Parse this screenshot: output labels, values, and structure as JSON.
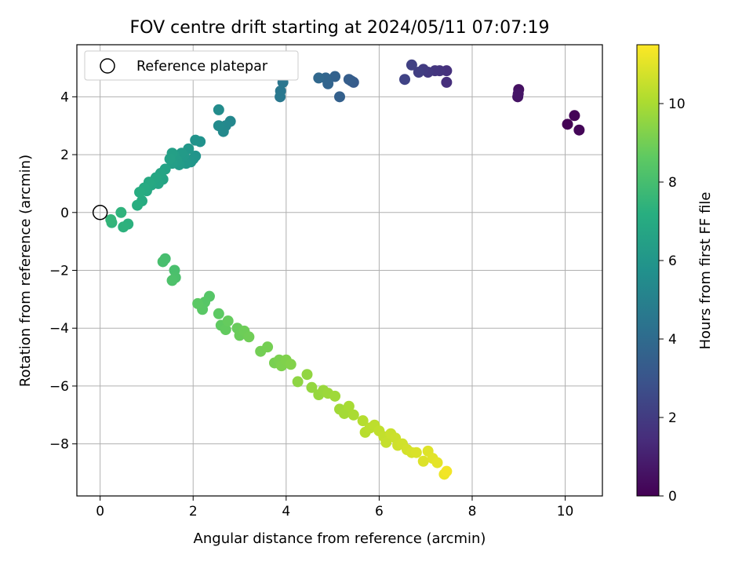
{
  "chart_data": {
    "type": "scatter",
    "title": "FOV centre drift starting at 2024/05/11 07:07:19",
    "xlabel": "Angular distance from reference (arcmin)",
    "ylabel": "Rotation from reference (arcmin)",
    "xlim": [
      -0.5,
      10.8
    ],
    "ylim": [
      -9.8,
      5.8
    ],
    "xticks": [
      0,
      2,
      4,
      6,
      8,
      10
    ],
    "yticks": [
      -8,
      -6,
      -4,
      -2,
      0,
      2,
      4
    ],
    "xtick_labels": [
      "0",
      "2",
      "4",
      "6",
      "8",
      "10"
    ],
    "ytick_labels": [
      "−8",
      "−6",
      "−4",
      "−2",
      "0",
      "2",
      "4"
    ],
    "grid": true,
    "legend": {
      "placement": "top-left",
      "entries": [
        {
          "label": "Reference platepar",
          "marker": "open-circle"
        }
      ]
    },
    "reference_point": {
      "x": 0,
      "y": 0
    },
    "colorbar": {
      "label": "Hours from first FF file",
      "colormap": "viridis",
      "range": [
        0,
        11.5
      ],
      "ticks": [
        0,
        2,
        4,
        6,
        8,
        10
      ],
      "tick_labels": [
        "0",
        "2",
        "4",
        "6",
        "8",
        "10"
      ]
    },
    "series": [
      {
        "points": [
          [
            10.05,
            3.05,
            0.05
          ],
          [
            10.2,
            3.35,
            0.1
          ],
          [
            10.3,
            2.85,
            0.15
          ],
          [
            9.0,
            4.25,
            0.5
          ],
          [
            8.98,
            4.0,
            0.6
          ],
          [
            8.99,
            4.1,
            0.65
          ],
          [
            7.45,
            4.5,
            1.5
          ],
          [
            7.45,
            4.9,
            1.6
          ],
          [
            7.3,
            4.9,
            1.7
          ],
          [
            7.2,
            4.9,
            1.8
          ],
          [
            7.05,
            4.85,
            1.9
          ],
          [
            6.95,
            4.95,
            2.0
          ],
          [
            6.85,
            4.85,
            2.1
          ],
          [
            6.7,
            5.1,
            2.2
          ],
          [
            6.55,
            4.6,
            2.3
          ],
          [
            5.45,
            4.5,
            3.3
          ],
          [
            5.4,
            4.55,
            3.35
          ],
          [
            5.35,
            4.6,
            3.4
          ],
          [
            5.15,
            4.0,
            3.5
          ],
          [
            5.05,
            4.7,
            3.6
          ],
          [
            4.9,
            4.45,
            3.7
          ],
          [
            4.85,
            4.65,
            3.75
          ],
          [
            4.7,
            4.65,
            3.85
          ],
          [
            3.93,
            4.5,
            4.5
          ],
          [
            3.88,
            4.2,
            4.55
          ],
          [
            3.87,
            4.0,
            4.6
          ],
          [
            2.8,
            3.15,
            5.3
          ],
          [
            2.7,
            3.0,
            5.35
          ],
          [
            2.65,
            2.8,
            5.4
          ],
          [
            2.55,
            3.0,
            5.45
          ],
          [
            2.55,
            3.55,
            5.5
          ],
          [
            2.15,
            2.45,
            5.8
          ],
          [
            2.05,
            2.5,
            5.85
          ],
          [
            2.05,
            1.95,
            5.9
          ],
          [
            2.0,
            1.85,
            5.95
          ],
          [
            1.95,
            1.75,
            6.0
          ],
          [
            1.9,
            2.2,
            6.05
          ],
          [
            1.85,
            1.7,
            6.1
          ],
          [
            1.8,
            1.95,
            6.15
          ],
          [
            1.75,
            2.05,
            6.2
          ],
          [
            1.7,
            1.65,
            6.25
          ],
          [
            1.65,
            1.8,
            6.3
          ],
          [
            1.6,
            1.95,
            6.35
          ],
          [
            1.55,
            1.7,
            6.4
          ],
          [
            1.55,
            2.05,
            6.45
          ],
          [
            1.5,
            1.85,
            6.5
          ],
          [
            1.4,
            1.5,
            6.6
          ],
          [
            1.35,
            1.15,
            6.65
          ],
          [
            1.3,
            1.35,
            6.7
          ],
          [
            1.25,
            1.0,
            6.75
          ],
          [
            1.2,
            1.2,
            6.8
          ],
          [
            1.1,
            0.95,
            6.85
          ],
          [
            1.05,
            1.05,
            6.9
          ],
          [
            1.0,
            0.75,
            6.95
          ],
          [
            0.95,
            0.85,
            7.0
          ],
          [
            0.9,
            0.4,
            7.05
          ],
          [
            0.85,
            0.7,
            7.1
          ],
          [
            0.8,
            0.25,
            7.15
          ],
          [
            0.6,
            -0.4,
            7.3
          ],
          [
            0.5,
            -0.5,
            7.35
          ],
          [
            0.45,
            0.0,
            7.4
          ],
          [
            0.25,
            -0.35,
            7.45
          ],
          [
            0.23,
            -0.25,
            7.5
          ],
          [
            1.4,
            -1.6,
            8.0
          ],
          [
            1.35,
            -1.7,
            8.05
          ],
          [
            1.6,
            -2.0,
            8.1
          ],
          [
            1.62,
            -2.25,
            8.15
          ],
          [
            1.55,
            -2.35,
            8.2
          ],
          [
            2.35,
            -2.9,
            8.4
          ],
          [
            2.25,
            -3.1,
            8.45
          ],
          [
            2.2,
            -3.35,
            8.5
          ],
          [
            2.1,
            -3.15,
            8.55
          ],
          [
            2.55,
            -3.5,
            8.6
          ],
          [
            2.6,
            -3.9,
            8.65
          ],
          [
            2.7,
            -4.05,
            8.7
          ],
          [
            2.75,
            -3.75,
            8.75
          ],
          [
            2.95,
            -4.0,
            8.8
          ],
          [
            3.0,
            -4.25,
            8.85
          ],
          [
            3.1,
            -4.1,
            8.9
          ],
          [
            3.2,
            -4.3,
            8.95
          ],
          [
            3.45,
            -4.8,
            9.0
          ],
          [
            3.6,
            -4.65,
            9.05
          ],
          [
            3.75,
            -5.2,
            9.1
          ],
          [
            3.85,
            -5.1,
            9.15
          ],
          [
            3.9,
            -5.3,
            9.2
          ],
          [
            4.0,
            -5.1,
            9.25
          ],
          [
            4.1,
            -5.25,
            9.3
          ],
          [
            4.25,
            -5.85,
            9.5
          ],
          [
            4.45,
            -5.6,
            9.55
          ],
          [
            4.55,
            -6.05,
            9.6
          ],
          [
            4.7,
            -6.3,
            9.65
          ],
          [
            4.8,
            -6.15,
            9.7
          ],
          [
            4.9,
            -6.25,
            9.75
          ],
          [
            5.05,
            -6.35,
            9.8
          ],
          [
            5.15,
            -6.8,
            9.85
          ],
          [
            5.25,
            -6.95,
            9.9
          ],
          [
            5.35,
            -6.7,
            9.95
          ],
          [
            5.45,
            -7.0,
            10.0
          ],
          [
            5.65,
            -7.2,
            10.2
          ],
          [
            5.7,
            -7.6,
            10.25
          ],
          [
            5.8,
            -7.45,
            10.3
          ],
          [
            5.9,
            -7.35,
            10.35
          ],
          [
            6.0,
            -7.55,
            10.4
          ],
          [
            6.1,
            -7.75,
            10.45
          ],
          [
            6.15,
            -7.95,
            10.5
          ],
          [
            6.25,
            -7.65,
            10.55
          ],
          [
            6.35,
            -7.8,
            10.6
          ],
          [
            6.4,
            -8.05,
            10.65
          ],
          [
            6.5,
            -8.0,
            10.7
          ],
          [
            6.6,
            -8.2,
            10.75
          ],
          [
            6.7,
            -8.3,
            10.8
          ],
          [
            6.8,
            -8.3,
            10.85
          ],
          [
            6.95,
            -8.6,
            10.9
          ],
          [
            7.05,
            -8.25,
            10.95
          ],
          [
            7.15,
            -8.5,
            11.0
          ],
          [
            7.25,
            -8.65,
            11.05
          ],
          [
            7.4,
            -9.05,
            11.2
          ],
          [
            7.45,
            -8.95,
            11.3
          ]
        ]
      }
    ]
  }
}
